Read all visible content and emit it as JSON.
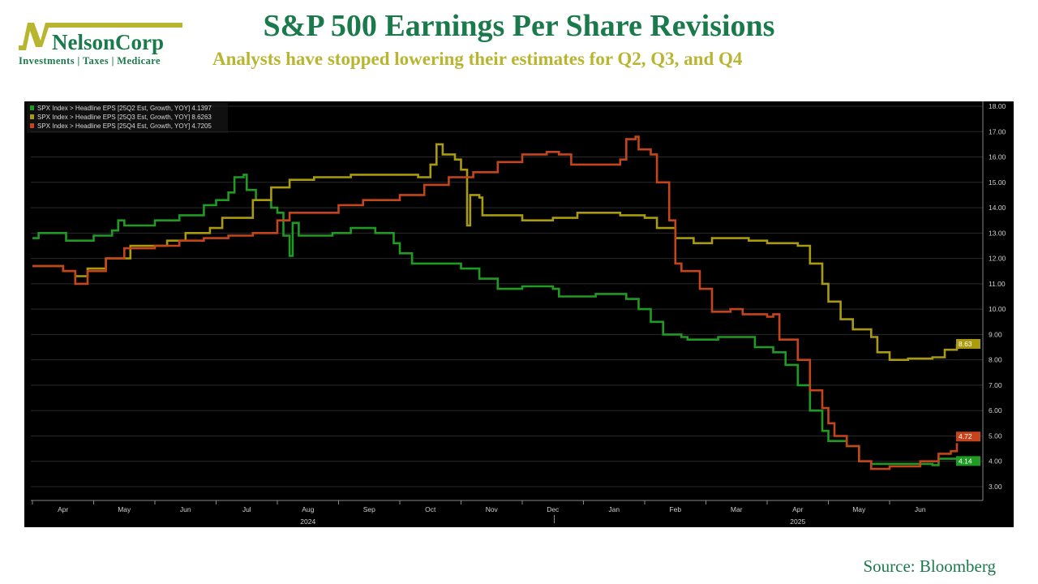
{
  "header": {
    "title": "S&P 500 Earnings Per Share Revisions",
    "subtitle": "Analysts have stopped lowering their estimates for Q2, Q3, and Q4"
  },
  "logo": {
    "name": "NelsonCorp",
    "tagline": "Investments | Taxes | Medicare"
  },
  "source": "Source: Bloomberg",
  "colors": {
    "green": "#1f9a22",
    "yellow": "#a99a0e",
    "red": "#c4451c",
    "title": "#1b7a4c",
    "subtitle": "#b8b531"
  },
  "chart_data": {
    "type": "line",
    "title": "S&P 500 Earnings Per Share Revisions",
    "xunit": "months since Apr 1 2024",
    "ylim": [
      3,
      18
    ],
    "yticks": [
      "18.00",
      "17.00",
      "16.00",
      "15.00",
      "14.00",
      "13.00",
      "12.00",
      "11.00",
      "10.00",
      "9.00",
      "8.00",
      "7.00",
      "6.00",
      "5.00",
      "4.00",
      "3.00"
    ],
    "months": [
      "Apr",
      "May",
      "Jun",
      "Jul",
      "Aug",
      "Sep",
      "Oct",
      "Nov",
      "Dec",
      "Jan",
      "Feb",
      "Mar",
      "Apr",
      "May",
      "Jun"
    ],
    "years": [
      {
        "label": "2024",
        "at": 4.5
      },
      {
        "label": "2025",
        "at": 12.5
      }
    ],
    "legend": [
      "SPX Index > Headline EPS [25Q2 Est, Growth, YOY] 4.1397",
      "SPX Index > Headline EPS [25Q3 Est, Growth, YOY] 8.6263",
      "SPX Index > Headline EPS [25Q4 Est, Growth, YOY] 4.7205"
    ],
    "series": [
      {
        "name": "25Q2",
        "color": "#1f9a22",
        "last_label": "4.14",
        "last": 4.14,
        "x": [
          0,
          0.1,
          0.4,
          0.55,
          1.0,
          1.3,
          1.4,
          1.5,
          2.0,
          2.4,
          2.8,
          3.0,
          3.2,
          3.3,
          3.45,
          3.5,
          3.65,
          3.9,
          4.0,
          4.1,
          4.2,
          4.25,
          4.35,
          4.9,
          5.2,
          5.6,
          5.9,
          6.0,
          6.2,
          6.8,
          7.0,
          7.3,
          7.6,
          8.0,
          8.5,
          8.6,
          9.2,
          9.7,
          9.9,
          10.1,
          10.3,
          10.6,
          10.7,
          11.2,
          11.8,
          12.1,
          12.3,
          12.5,
          12.7,
          12.9,
          13.0,
          13.3,
          13.5,
          13.7,
          14.0,
          14.5,
          14.7,
          14.8,
          15.1
        ],
        "y": [
          12.8,
          13.0,
          13.0,
          12.7,
          12.9,
          13.1,
          13.5,
          13.3,
          13.5,
          13.7,
          14.1,
          14.3,
          14.6,
          15.2,
          15.3,
          14.7,
          14.3,
          14.0,
          13.8,
          12.9,
          12.1,
          13.4,
          12.9,
          13.0,
          13.2,
          13.0,
          12.6,
          12.2,
          11.8,
          11.8,
          11.6,
          11.2,
          10.8,
          10.9,
          10.8,
          10.5,
          10.6,
          10.4,
          10.0,
          9.5,
          9.0,
          8.9,
          8.8,
          8.9,
          8.5,
          8.3,
          7.8,
          7.0,
          6.0,
          5.2,
          4.8,
          4.6,
          4.0,
          3.9,
          3.9,
          3.9,
          3.85,
          4.1,
          4.14
        ]
      },
      {
        "name": "25Q3",
        "color": "#a99a0e",
        "last_label": "8.63",
        "last": 8.63,
        "x": [
          0,
          0.5,
          0.7,
          0.9,
          1.2,
          1.6,
          2.2,
          2.5,
          2.9,
          3.1,
          3.3,
          3.6,
          3.9,
          4.2,
          4.6,
          5.2,
          5.8,
          6.3,
          6.5,
          6.6,
          6.7,
          6.9,
          7.0,
          7.1,
          7.15,
          7.3,
          7.35,
          8.0,
          8.5,
          8.9,
          9.3,
          9.6,
          10.0,
          10.2,
          10.5,
          10.8,
          11.1,
          11.7,
          12.0,
          12.5,
          12.7,
          12.9,
          13.0,
          13.2,
          13.4,
          13.7,
          13.8,
          14.0,
          14.3,
          14.7,
          14.9,
          15.1
        ],
        "y": [
          11.7,
          11.5,
          11.3,
          11.6,
          12.0,
          12.5,
          12.7,
          13.0,
          13.2,
          13.6,
          13.6,
          14.3,
          14.8,
          15.1,
          15.2,
          15.3,
          15.3,
          15.2,
          15.7,
          16.5,
          16.1,
          15.9,
          15.5,
          13.3,
          14.5,
          14.4,
          13.7,
          13.5,
          13.6,
          13.8,
          13.8,
          13.7,
          13.6,
          13.2,
          12.8,
          12.6,
          12.8,
          12.7,
          12.6,
          12.5,
          11.8,
          11.0,
          10.3,
          9.6,
          9.2,
          8.9,
          8.3,
          8.0,
          8.05,
          8.1,
          8.4,
          8.63
        ]
      },
      {
        "name": "25Q4",
        "color": "#c4451c",
        "last_label": "4.72",
        "last": 4.72,
        "x": [
          0,
          0.5,
          0.7,
          0.9,
          1.2,
          1.5,
          2.0,
          2.4,
          2.8,
          3.2,
          3.6,
          4.0,
          4.2,
          4.5,
          5.0,
          5.4,
          6.0,
          6.4,
          6.8,
          7.2,
          7.6,
          8.0,
          8.4,
          8.6,
          8.8,
          9.4,
          9.6,
          9.7,
          9.85,
          9.9,
          10.1,
          10.2,
          10.4,
          10.5,
          10.6,
          10.9,
          11.1,
          11.4,
          11.6,
          12.0,
          12.1,
          12.2,
          12.5,
          12.7,
          12.9,
          13.0,
          13.1,
          13.3,
          13.5,
          13.7,
          14.0,
          14.5,
          14.8,
          15.0,
          15.1
        ],
        "y": [
          11.7,
          11.5,
          11.0,
          11.5,
          12.0,
          12.4,
          12.5,
          12.7,
          12.8,
          12.9,
          13.0,
          13.5,
          13.8,
          13.8,
          14.1,
          14.3,
          14.5,
          14.9,
          15.2,
          15.4,
          15.8,
          16.1,
          16.2,
          16.1,
          15.7,
          15.7,
          15.9,
          16.7,
          16.8,
          16.3,
          16.1,
          15.0,
          13.5,
          11.8,
          11.5,
          10.8,
          9.9,
          10.0,
          9.8,
          9.7,
          9.8,
          8.8,
          8.0,
          6.8,
          6.1,
          5.5,
          5.0,
          4.6,
          4.0,
          3.7,
          3.8,
          4.0,
          4.3,
          4.4,
          4.72
        ]
      }
    ]
  }
}
